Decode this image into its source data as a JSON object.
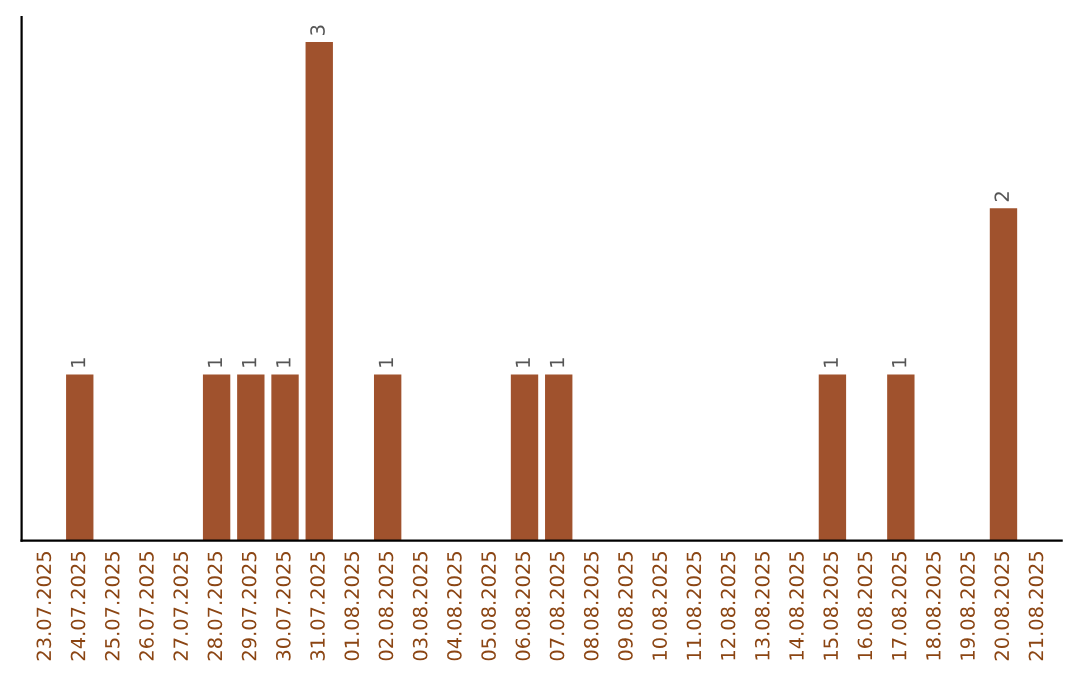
{
  "chart_data": {
    "type": "bar",
    "categories": [
      "23.07.2025",
      "24.07.2025",
      "25.07.2025",
      "26.07.2025",
      "27.07.2025",
      "28.07.2025",
      "29.07.2025",
      "30.07.2025",
      "31.07.2025",
      "01.08.2025",
      "02.08.2025",
      "03.08.2025",
      "04.08.2025",
      "05.08.2025",
      "06.08.2025",
      "07.08.2025",
      "08.08.2025",
      "09.08.2025",
      "10.08.2025",
      "11.08.2025",
      "12.08.2025",
      "13.08.2025",
      "14.08.2025",
      "15.08.2025",
      "16.08.2025",
      "17.08.2025",
      "18.08.2025",
      "19.08.2025",
      "20.08.2025",
      "21.08.2025"
    ],
    "values": [
      0,
      1,
      0,
      0,
      0,
      1,
      1,
      1,
      3,
      0,
      1,
      0,
      0,
      0,
      1,
      1,
      0,
      0,
      0,
      0,
      0,
      0,
      0,
      1,
      0,
      1,
      0,
      0,
      2,
      0
    ],
    "value_labels": [
      null,
      "1",
      null,
      null,
      null,
      "1",
      "1",
      "1",
      "3",
      null,
      "1",
      null,
      null,
      null,
      "1",
      "1",
      null,
      null,
      null,
      null,
      null,
      null,
      null,
      "1",
      null,
      "1",
      null,
      null,
      "2",
      null
    ],
    "color": "#a0522d",
    "tick_labels": "x",
    "grid": false,
    "legend": false
  }
}
